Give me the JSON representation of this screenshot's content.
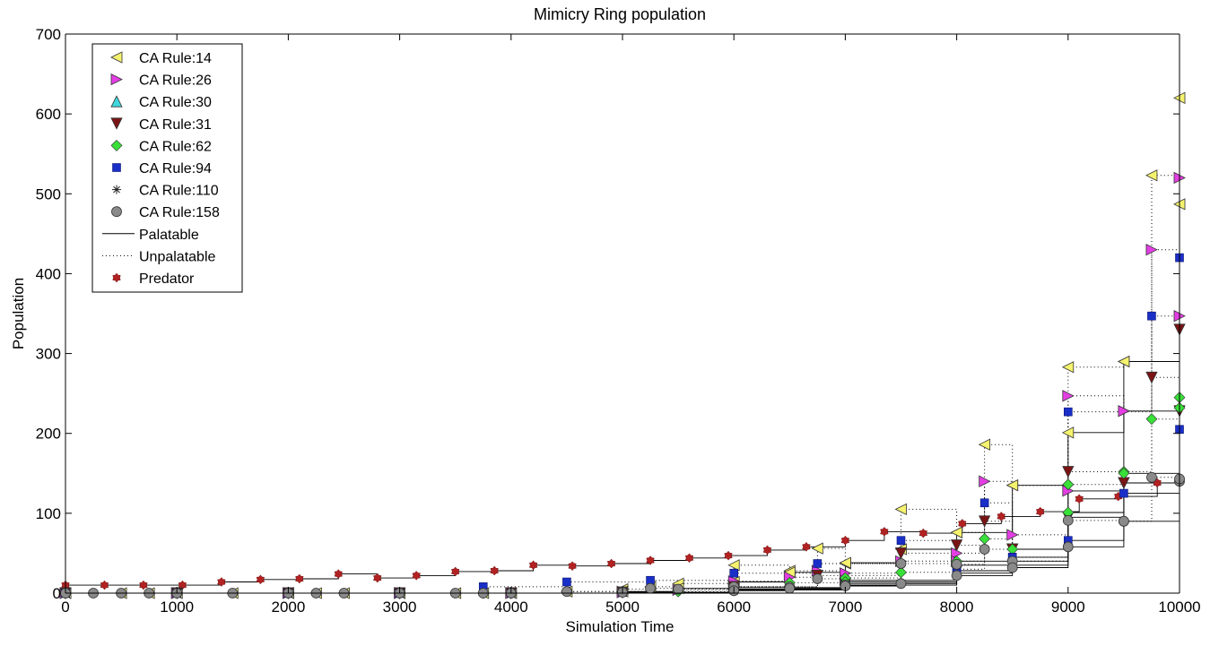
{
  "chart_data": {
    "type": "line",
    "title": "Mimicry Ring population",
    "xlabel": "Simulation Time",
    "ylabel": "Population",
    "xlim": [
      0,
      10000
    ],
    "ylim": [
      0,
      700
    ],
    "xticks": [
      0,
      1000,
      2000,
      3000,
      4000,
      5000,
      6000,
      7000,
      8000,
      9000,
      10000
    ],
    "yticks": [
      0,
      100,
      200,
      300,
      400,
      500,
      600,
      700
    ],
    "grid": false,
    "legend_position": "top-left",
    "legend": [
      {
        "label": "CA Rule:14",
        "marker": "triangle-left",
        "color": "#f5f26e"
      },
      {
        "label": "CA Rule:26",
        "marker": "triangle-right",
        "color": "#e33ee3"
      },
      {
        "label": "CA Rule:30",
        "marker": "triangle-up",
        "color": "#3fd7dd"
      },
      {
        "label": "CA Rule:31",
        "marker": "triangle-down",
        "color": "#7a1414"
      },
      {
        "label": "CA Rule:62",
        "marker": "diamond",
        "color": "#38e038"
      },
      {
        "label": "CA Rule:94",
        "marker": "square",
        "color": "#1a2fc8"
      },
      {
        "label": "CA Rule:110",
        "marker": "asterisk",
        "color": "#222222"
      },
      {
        "label": "CA Rule:158",
        "marker": "circle",
        "color": "#8a8a8a"
      },
      {
        "label": "Palatable",
        "marker": "solid-line",
        "color": "#000000"
      },
      {
        "label": "Unpalatable",
        "marker": "dotted-line",
        "color": "#000000"
      },
      {
        "label": "Predator",
        "marker": "hexagram",
        "color": "#b22222"
      }
    ],
    "series": [
      {
        "name": "Predator",
        "style": "solid",
        "marker": "hexagram",
        "color": "#b22222",
        "x": [
          0,
          350,
          700,
          1050,
          1400,
          1750,
          2100,
          2450,
          2800,
          3150,
          3500,
          3850,
          4200,
          4550,
          4900,
          5250,
          5600,
          5950,
          6300,
          6650,
          7000,
          7350,
          7700,
          8050,
          8400,
          8750,
          9100,
          9450,
          9800
        ],
        "y": [
          10,
          10,
          10,
          10,
          14,
          17,
          18,
          24,
          19,
          22,
          27,
          28,
          35,
          34,
          37,
          41,
          44,
          47,
          54,
          58,
          66,
          77,
          75,
          87,
          96,
          102,
          118,
          121,
          138
        ]
      },
      {
        "name": "CA Rule:14",
        "style": "dotted",
        "marker": "triangle-left",
        "color": "#f5f26e",
        "x": [
          0,
          500,
          750,
          1000,
          1500,
          2000,
          2250,
          2500,
          3000,
          3500,
          3750,
          4000,
          4500,
          5000,
          5250,
          5500,
          6000,
          6500,
          6750,
          7000,
          7500,
          8000,
          8250,
          8500,
          9000,
          9500,
          9750,
          10000
        ],
        "y": [
          0,
          0,
          0,
          0,
          0,
          0,
          0,
          0,
          0,
          0,
          0,
          0,
          2,
          5,
          8,
          12,
          35,
          28,
          56,
          37,
          105,
          76,
          186,
          135,
          283,
          290,
          523,
          620
        ]
      },
      {
        "name": "CA Rule:14",
        "style": "solid",
        "marker": "triangle-left",
        "color": "#f5f26e",
        "x": [
          0,
          1000,
          2000,
          3000,
          4000,
          5000,
          5500,
          6000,
          6500,
          7000,
          7500,
          8000,
          8500,
          9000,
          9500,
          10000
        ],
        "y": [
          0,
          0,
          0,
          0,
          0,
          2,
          6,
          14,
          26,
          38,
          55,
          76,
          135,
          201,
          290,
          487
        ]
      },
      {
        "name": "CA Rule:26",
        "style": "dotted",
        "marker": "triangle-right",
        "color": "#e33ee3",
        "x": [
          0,
          1000,
          2000,
          3000,
          4000,
          5000,
          5500,
          6000,
          6500,
          6750,
          7000,
          7500,
          8000,
          8250,
          8500,
          9000,
          9500,
          9750,
          10000
        ],
        "y": [
          0,
          0,
          0,
          0,
          0,
          2,
          4,
          15,
          20,
          28,
          25,
          40,
          50,
          140,
          73,
          247,
          228,
          430,
          520
        ]
      },
      {
        "name": "CA Rule:26",
        "style": "solid",
        "marker": "triangle-right",
        "color": "#e33ee3",
        "x": [
          0,
          1000,
          2000,
          3000,
          4000,
          5000,
          6000,
          7000,
          8000,
          9000,
          9500,
          10000
        ],
        "y": [
          0,
          0,
          0,
          0,
          0,
          1,
          7,
          16,
          40,
          128,
          228,
          347
        ]
      },
      {
        "name": "CA Rule:31",
        "style": "dotted",
        "marker": "triangle-down",
        "color": "#7a1414",
        "x": [
          0,
          1000,
          2000,
          3000,
          4000,
          5000,
          6000,
          6750,
          7500,
          8000,
          8250,
          8500,
          9000,
          9500,
          9750,
          10000
        ],
        "y": [
          0,
          0,
          0,
          0,
          0,
          1,
          8,
          22,
          50,
          60,
          90,
          55,
          152,
          138,
          270,
          330
        ]
      },
      {
        "name": "CA Rule:31",
        "style": "solid",
        "marker": "triangle-down",
        "color": "#7a1414",
        "x": [
          0,
          1000,
          2000,
          3000,
          4000,
          5000,
          6000,
          7000,
          8000,
          8500,
          9000,
          9500,
          10000
        ],
        "y": [
          0,
          0,
          0,
          0,
          0,
          1,
          5,
          12,
          28,
          55,
          95,
          138,
          228
        ]
      },
      {
        "name": "CA Rule:62",
        "style": "dotted",
        "marker": "diamond",
        "color": "#38e038",
        "x": [
          0,
          1000,
          2000,
          3000,
          3750,
          4000,
          5000,
          5500,
          6000,
          6500,
          7000,
          7500,
          8000,
          8250,
          8500,
          9000,
          9500,
          9750,
          10000
        ],
        "y": [
          0,
          0,
          0,
          0,
          0,
          0,
          1,
          2,
          8,
          13,
          19,
          26,
          40,
          68,
          55,
          136,
          152,
          218,
          245
        ]
      },
      {
        "name": "CA Rule:62",
        "style": "solid",
        "marker": "diamond",
        "color": "#38e038",
        "x": [
          0,
          1000,
          2000,
          3000,
          4000,
          5000,
          6000,
          7000,
          8000,
          9000,
          9500,
          10000
        ],
        "y": [
          0,
          0,
          0,
          0,
          0,
          1,
          5,
          14,
          35,
          101,
          150,
          232
        ]
      },
      {
        "name": "CA Rule:94",
        "style": "dotted",
        "marker": "square",
        "color": "#1a2fc8",
        "x": [
          0,
          1000,
          2000,
          3000,
          3750,
          4500,
          5250,
          6000,
          6750,
          7500,
          8000,
          8250,
          8500,
          9000,
          9750,
          10000
        ],
        "y": [
          0,
          0,
          0,
          0,
          8,
          14,
          16,
          25,
          37,
          66,
          30,
          113,
          45,
          227,
          347,
          420
        ]
      },
      {
        "name": "CA Rule:94",
        "style": "solid",
        "marker": "square",
        "color": "#1a2fc8",
        "x": [
          0,
          1000,
          2000,
          3000,
          4000,
          5000,
          6000,
          7000,
          8000,
          8500,
          9000,
          9500,
          10000
        ],
        "y": [
          0,
          0,
          0,
          0,
          0,
          1,
          4,
          10,
          25,
          45,
          66,
          125,
          205
        ]
      },
      {
        "name": "CA Rule:158",
        "style": "dotted",
        "marker": "circle",
        "color": "#8a8a8a",
        "x": [
          0,
          250,
          500,
          750,
          1000,
          1500,
          2000,
          2250,
          2500,
          3000,
          3500,
          3750,
          4000,
          4500,
          5000,
          5250,
          5500,
          6000,
          6500,
          6750,
          7000,
          7500,
          8000,
          8250,
          8500,
          9000,
          9500,
          9750,
          10000
        ],
        "y": [
          0,
          0,
          0,
          0,
          0,
          0,
          0,
          0,
          0,
          0,
          0,
          0,
          0,
          2,
          2,
          6,
          5,
          8,
          8,
          18,
          10,
          37,
          36,
          55,
          40,
          91,
          90,
          145,
          140
        ]
      },
      {
        "name": "CA Rule:158",
        "style": "solid",
        "marker": "circle",
        "color": "#8a8a8a",
        "x": [
          0,
          1000,
          2000,
          3000,
          4000,
          5000,
          6000,
          6500,
          7000,
          7500,
          8000,
          8500,
          9000,
          9500,
          10000
        ],
        "y": [
          0,
          0,
          0,
          0,
          0,
          1,
          3,
          6,
          9,
          12,
          22,
          32,
          58,
          90,
          143
        ]
      }
    ]
  }
}
